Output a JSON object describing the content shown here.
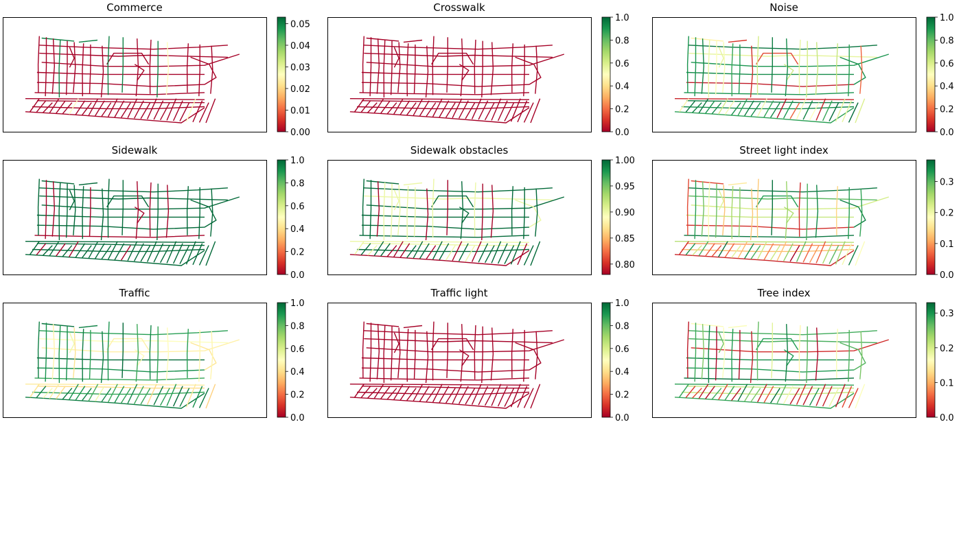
{
  "figure": {
    "colormap": "RdYlGn",
    "colormap_stops": [
      "#a50026",
      "#d73027",
      "#f46d43",
      "#fdae61",
      "#fee08b",
      "#ffffbf",
      "#d9ef8b",
      "#a6d96a",
      "#66bd63",
      "#1a9850",
      "#006837"
    ]
  },
  "chart_data": [
    {
      "type": "network_map",
      "title": "Commerce",
      "colorbar": {
        "min": 0,
        "max": 0.053,
        "ticks": [
          0.0,
          0.01,
          0.02,
          0.03,
          0.04,
          0.05
        ],
        "tick_labels": [
          "0.00",
          "0.01",
          "0.02",
          "0.03",
          "0.04",
          "0.05"
        ]
      },
      "value_distribution": "mostly 0 with a few streets near 0.05 (north edge)"
    },
    {
      "type": "network_map",
      "title": "Crosswalk",
      "colorbar": {
        "min": 0,
        "max": 1,
        "ticks": [
          0,
          0.2,
          0.4,
          0.6,
          0.8,
          1.0
        ],
        "tick_labels": [
          "0.0",
          "0.2",
          "0.4",
          "0.6",
          "0.8",
          "1.0"
        ]
      },
      "value_distribution": "all streets 0"
    },
    {
      "type": "network_map",
      "title": "Noise",
      "colorbar": {
        "min": 0,
        "max": 1,
        "ticks": [
          0,
          0.2,
          0.4,
          0.6,
          0.8,
          1.0
        ],
        "tick_labels": [
          "0.0",
          "0.2",
          "0.4",
          "0.6",
          "0.8",
          "1.0"
        ]
      },
      "value_distribution": "mostly high (green), some mid (yellow), few low (red)"
    },
    {
      "type": "network_map",
      "title": "Sidewalk",
      "colorbar": {
        "min": 0,
        "max": 1,
        "ticks": [
          0,
          0.2,
          0.4,
          0.6,
          0.8,
          1.0
        ],
        "tick_labels": [
          "0.0",
          "0.2",
          "0.4",
          "0.6",
          "0.8",
          "1.0"
        ]
      },
      "value_distribution": "mostly 1, some streets 0"
    },
    {
      "type": "network_map",
      "title": "Sidewalk obstacles",
      "colorbar": {
        "min": 0.78,
        "max": 1.0,
        "ticks": [
          0.8,
          0.85,
          0.9,
          0.95,
          1.0
        ],
        "tick_labels": [
          "0.80",
          "0.85",
          "0.90",
          "0.95",
          "1.00"
        ]
      },
      "value_distribution": "mix of 1.00 (green), ~0.9 (yellow) and ~0.78 (red)"
    },
    {
      "type": "network_map",
      "title": "Street light index",
      "colorbar": {
        "min": 0,
        "max": 0.37,
        "ticks": [
          0.0,
          0.1,
          0.2,
          0.3
        ],
        "tick_labels": [
          "0.0",
          "0.1",
          "0.2",
          "0.3"
        ]
      },
      "value_distribution": "mixed low to high"
    },
    {
      "type": "network_map",
      "title": "Traffic",
      "colorbar": {
        "min": 0,
        "max": 1,
        "ticks": [
          0,
          0.2,
          0.4,
          0.6,
          0.8,
          1.0
        ],
        "tick_labels": [
          "0.0",
          "0.2",
          "0.4",
          "0.6",
          "0.8",
          "1.0"
        ]
      },
      "value_distribution": "mostly high (green) with yellow arterials"
    },
    {
      "type": "network_map",
      "title": "Traffic light",
      "colorbar": {
        "min": 0,
        "max": 1,
        "ticks": [
          0,
          0.2,
          0.4,
          0.6,
          0.8,
          1.0
        ],
        "tick_labels": [
          "0.0",
          "0.2",
          "0.4",
          "0.6",
          "0.8",
          "1.0"
        ]
      },
      "value_distribution": "all streets 0"
    },
    {
      "type": "network_map",
      "title": "Tree index",
      "colorbar": {
        "min": 0,
        "max": 0.33,
        "ticks": [
          0.0,
          0.1,
          0.2,
          0.3
        ],
        "tick_labels": [
          "0.0",
          "0.1",
          "0.2",
          "0.3"
        ]
      },
      "value_distribution": "mixed low to high"
    }
  ]
}
